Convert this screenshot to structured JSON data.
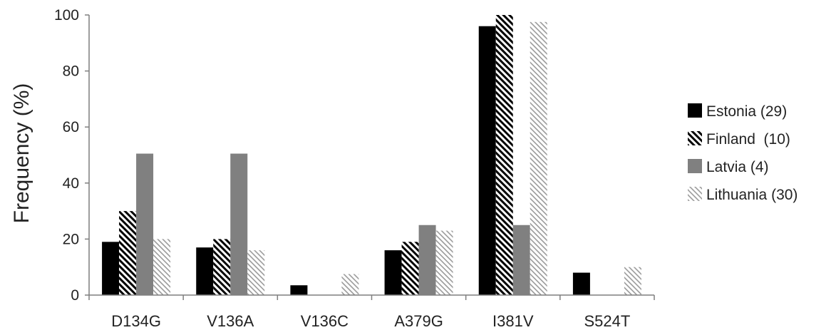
{
  "chart_data": {
    "type": "bar",
    "ylabel": "Frequency (%)",
    "xlabel": "",
    "ylim": [
      0,
      100
    ],
    "yticks": [
      0,
      20,
      40,
      60,
      80,
      100
    ],
    "grid": false,
    "legend_position": "right",
    "categories": [
      "D134G",
      "V136A",
      "V136C",
      "A379G",
      "I381V",
      "S524T"
    ],
    "series": [
      {
        "name": "Estonia (29)",
        "pattern": "solid-black",
        "color": "#000000",
        "values": [
          19,
          17,
          3.5,
          16,
          96,
          8
        ]
      },
      {
        "name": "Finland  (10)",
        "pattern": "dense-diagonal",
        "color": "#000000",
        "values": [
          30,
          20,
          0,
          19,
          100,
          0
        ]
      },
      {
        "name": "Latvia (4)",
        "pattern": "solid-gray",
        "color": "#808080",
        "values": [
          50.5,
          50.5,
          0,
          25,
          25,
          0
        ]
      },
      {
        "name": "Lithuania (30)",
        "pattern": "light-diagonal",
        "color": "#9a9a9a",
        "values": [
          20,
          16,
          7.5,
          23,
          97.5,
          10
        ]
      }
    ]
  }
}
